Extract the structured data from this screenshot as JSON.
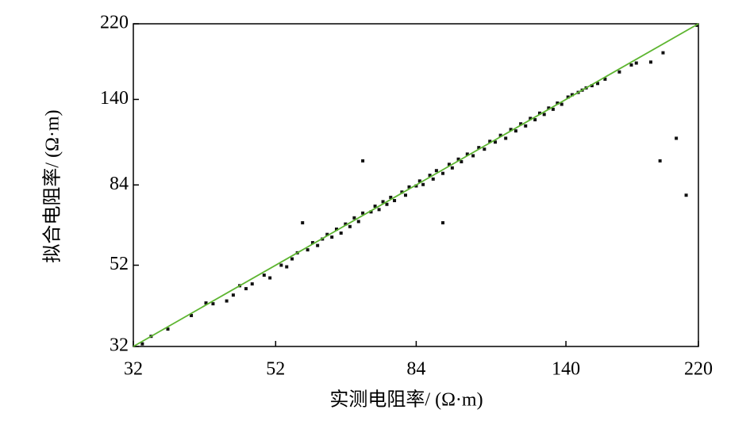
{
  "chart_data": {
    "type": "scatter",
    "xlabel": "实测电阻率/ (Ω·m)",
    "ylabel": "拟合电阻率/ (Ω·m)",
    "log_scale": true,
    "xlim": [
      32,
      220
    ],
    "ylim": [
      32,
      220
    ],
    "xticks": [
      32,
      52,
      84,
      140,
      220
    ],
    "yticks": [
      32,
      52,
      84,
      140,
      220
    ],
    "series": [
      {
        "color": "#111111",
        "x": [
          33,
          34,
          36,
          39,
          41,
          42,
          44,
          45,
          46,
          47,
          48,
          50,
          51,
          53,
          54,
          55,
          56,
          57,
          58,
          59,
          60,
          61,
          62,
          63,
          64,
          65,
          66,
          67,
          68,
          69,
          70,
          70,
          72,
          73,
          74,
          75,
          76,
          77,
          78,
          80,
          81,
          82,
          84,
          85,
          86,
          88,
          89,
          90,
          92,
          92,
          94,
          95,
          97,
          98,
          100,
          102,
          104,
          106,
          108,
          110,
          112,
          114,
          116,
          118,
          120,
          122,
          124,
          126,
          128,
          130,
          132,
          134,
          136,
          138,
          141,
          143,
          146,
          148,
          150,
          153,
          156,
          160,
          168,
          175,
          178,
          187,
          193,
          195,
          204,
          211,
          219
        ],
        "values": [
          32.5,
          34,
          35.5,
          38.5,
          41.5,
          41.3,
          42,
          43.5,
          46,
          45.2,
          46.5,
          49,
          48.2,
          52,
          51.5,
          54,
          56,
          67,
          57,
          59.5,
          58.5,
          60.8,
          62.5,
          61.5,
          64.5,
          63,
          66.5,
          65.5,
          69,
          67.5,
          97,
          71,
          71.5,
          74,
          72.5,
          76,
          74.8,
          78,
          76.5,
          80.5,
          79,
          83,
          83.5,
          86,
          84.2,
          89,
          87,
          91.5,
          67,
          90,
          95,
          93,
          98,
          96.5,
          101,
          100,
          105,
          104,
          109,
          108.5,
          113,
          111,
          117,
          116,
          121,
          119.5,
          125,
          124,
          129,
          128,
          133,
          132,
          137,
          136,
          142,
          144,
          146,
          148,
          150,
          152,
          154,
          158,
          165,
          172,
          174,
          175,
          97,
          185,
          111,
          79,
          218
        ]
      }
    ],
    "fit_line": {
      "color": "#5db530",
      "x": [
        32,
        220
      ],
      "values": [
        32,
        220
      ]
    }
  }
}
